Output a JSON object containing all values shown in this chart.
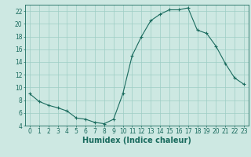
{
  "x": [
    0,
    1,
    2,
    3,
    4,
    5,
    6,
    7,
    8,
    9,
    10,
    11,
    12,
    13,
    14,
    15,
    16,
    17,
    18,
    19,
    20,
    21,
    22,
    23
  ],
  "y": [
    9.0,
    7.8,
    7.2,
    6.8,
    6.3,
    5.2,
    5.0,
    4.5,
    4.3,
    5.0,
    9.0,
    15.0,
    18.0,
    20.5,
    21.5,
    22.2,
    22.2,
    22.5,
    19.0,
    18.5,
    16.5,
    13.8,
    11.5,
    10.5
  ],
  "line_color": "#1a6b5e",
  "marker": "+",
  "marker_size": 3,
  "marker_linewidth": 0.8,
  "line_width": 0.8,
  "bg_color": "#cde8e2",
  "grid_color": "#9dcdc5",
  "xlabel": "Humidex (Indice chaleur)",
  "ylim": [
    4,
    23
  ],
  "xlim": [
    -0.5,
    23.5
  ],
  "yticks": [
    4,
    6,
    8,
    10,
    12,
    14,
    16,
    18,
    20,
    22
  ],
  "xticks": [
    0,
    1,
    2,
    3,
    4,
    5,
    6,
    7,
    8,
    9,
    10,
    11,
    12,
    13,
    14,
    15,
    16,
    17,
    18,
    19,
    20,
    21,
    22,
    23
  ],
  "tick_fontsize": 5.5,
  "label_fontsize": 7.0
}
